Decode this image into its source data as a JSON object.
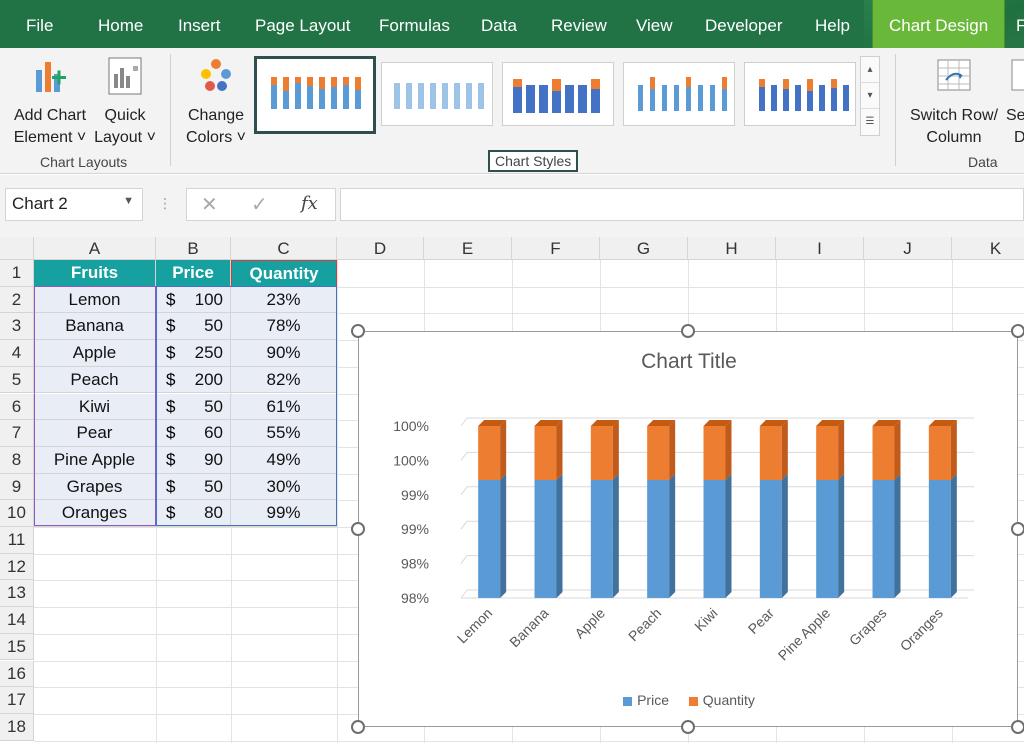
{
  "menu": {
    "tabs": [
      "File",
      "Home",
      "Insert",
      "Page Layout",
      "Formulas",
      "Data",
      "Review",
      "View",
      "Developer",
      "Help",
      "Chart Design"
    ],
    "active_tab": "Chart Design",
    "accent": "#217346"
  },
  "ribbon": {
    "add_chart_element": [
      "Add Chart",
      "Element ˅"
    ],
    "quick_layout": [
      "Quick",
      "Layout ˅"
    ],
    "group_chart_layouts": "Chart Layouts",
    "change_colors": [
      "Change",
      "Colors ˅"
    ],
    "group_chart_styles": "Chart Styles",
    "switch_row_column": [
      "Switch Row/",
      "Column"
    ],
    "select_data_partial": [
      "Se",
      "D"
    ],
    "group_data": "Data"
  },
  "formula_bar": {
    "name_box": "Chart 2",
    "cancel_icon": "✕",
    "enter_icon": "✓",
    "fx": "fx",
    "formula": ""
  },
  "sheet": {
    "columns": [
      "A",
      "B",
      "C",
      "D",
      "E",
      "F",
      "G",
      "H",
      "I",
      "J",
      "K"
    ],
    "rows": [
      "1",
      "2",
      "3",
      "4",
      "5",
      "6",
      "7",
      "8",
      "9",
      "10",
      "11",
      "12",
      "13",
      "14",
      "15",
      "16",
      "17",
      "18"
    ],
    "headers": [
      "Fruits",
      "Price",
      "Quantity"
    ],
    "data": [
      {
        "fruit": "Lemon",
        "currency": "$",
        "price": "100",
        "quantity": "23%"
      },
      {
        "fruit": "Banana",
        "currency": "$",
        "price": "50",
        "quantity": "78%"
      },
      {
        "fruit": "Apple",
        "currency": "$",
        "price": "250",
        "quantity": "90%"
      },
      {
        "fruit": "Peach",
        "currency": "$",
        "price": "200",
        "quantity": "82%"
      },
      {
        "fruit": "Kiwi",
        "currency": "$",
        "price": "50",
        "quantity": "61%"
      },
      {
        "fruit": "Pear",
        "currency": "$",
        "price": "60",
        "quantity": "55%"
      },
      {
        "fruit": "Pine Apple",
        "currency": "$",
        "price": "90",
        "quantity": "49%"
      },
      {
        "fruit": "Grapes",
        "currency": "$",
        "price": "50",
        "quantity": "30%"
      },
      {
        "fruit": "Oranges",
        "currency": "$",
        "price": "80",
        "quantity": "99%"
      }
    ],
    "header_color": "#17a0a0"
  },
  "chart_data": {
    "type": "bar",
    "stacked": "100% stacked column",
    "title": "Chart Title",
    "categories": [
      "Lemon",
      "Banana",
      "Apple",
      "Peach",
      "Kiwi",
      "Pear",
      "Pine Apple",
      "Grapes",
      "Oranges"
    ],
    "series": [
      {
        "name": "Price",
        "values": [
          100,
          50,
          250,
          200,
          50,
          60,
          90,
          50,
          80
        ],
        "color": "#5b9bd5"
      },
      {
        "name": "Quantity",
        "values": [
          0.23,
          0.78,
          0.9,
          0.82,
          0.61,
          0.55,
          0.49,
          0.3,
          0.99
        ],
        "color": "#ed7d31"
      }
    ],
    "yticks": [
      "100%",
      "100%",
      "99%",
      "99%",
      "98%",
      "98%"
    ],
    "ylim": [
      0.98,
      1.0
    ],
    "grid": true,
    "legend": "bottom"
  }
}
